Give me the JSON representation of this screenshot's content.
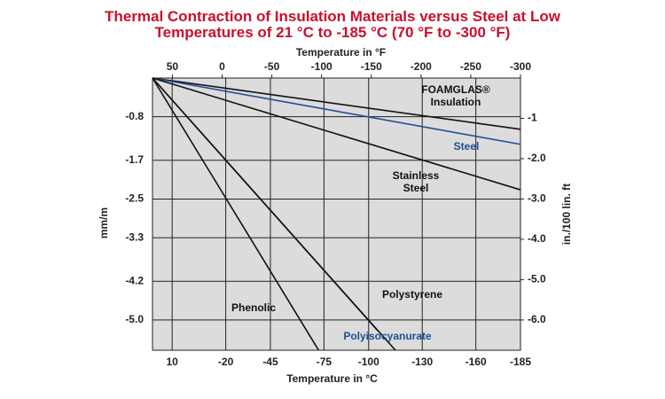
{
  "chart_data": {
    "type": "line",
    "title": "Thermal Contraction of Insulation Materials versus Steel at Low Temperatures of 21 °C to -185 °C (70 °F to -300 °F)",
    "x_label": "Temperature in °C",
    "x2_label": "Temperature in °F",
    "y_label": "mm/m",
    "y2_label": "in./100 lin. ft",
    "xlim": [
      21,
      -185
    ],
    "xticks": [
      10,
      -20,
      -45,
      -75,
      -100,
      -130,
      -160,
      -185
    ],
    "x2lim": [
      70,
      -300
    ],
    "x2ticks": [
      50,
      0,
      -50,
      -100,
      -150,
      -200,
      -250,
      -300
    ],
    "ylim": [
      0,
      -5.625
    ],
    "yticks": [
      -0.8,
      -1.7,
      -2.5,
      -3.3,
      -4.2,
      {
        "value": -5,
        "label": "-5.0"
      }
    ],
    "y2lim": [
      0,
      -6.75
    ],
    "y2ticks": [
      -1,
      {
        "value": -2,
        "label": "-2.0"
      },
      {
        "value": -3,
        "label": "-3.0"
      },
      {
        "value": -4,
        "label": "-4.0"
      },
      {
        "value": -5,
        "label": "-5.0"
      },
      {
        "value": -6,
        "label": "-6.0"
      }
    ],
    "grid": true,
    "series": [
      {
        "name": "FOAMGLAS® Insulation",
        "color": "#111111",
        "x": [
          21,
          -185
        ],
        "values": [
          0,
          -1.06
        ]
      },
      {
        "name": "Steel",
        "color": "#1f4e96",
        "x": [
          21,
          -185
        ],
        "values": [
          0,
          -1.37
        ]
      },
      {
        "name": "Stainless Steel",
        "color": "#111111",
        "x": [
          21,
          -185
        ],
        "values": [
          0,
          -2.31
        ]
      },
      {
        "name": "Phenolic",
        "color": "#111111",
        "x": [
          21,
          -72
        ],
        "values": [
          0,
          -5.625
        ]
      },
      {
        "name": "Polyisocyanurate",
        "color": "#1f4e96",
        "x": [
          21,
          -105
        ],
        "values": [
          0,
          -5.22
        ]
      },
      {
        "name": "Polystyrene",
        "color": "#111111",
        "x": [
          21,
          -115
        ],
        "values": [
          0,
          -5.625
        ]
      }
    ]
  }
}
